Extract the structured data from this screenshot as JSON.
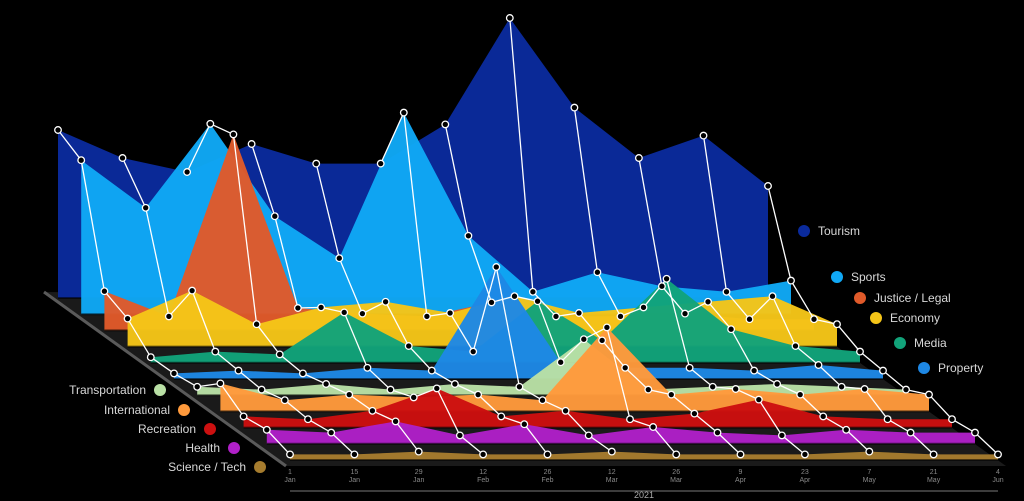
{
  "chart_data": {
    "type": "area",
    "subtype": "3d-stacked-depth-area",
    "title": "",
    "x_group_label": "2021",
    "x_ticks": [
      "1 Jan",
      "15 Jan",
      "29 Jan",
      "12 Feb",
      "26 Feb",
      "12 Mar",
      "26 Mar",
      "9 Apr",
      "23 Apr",
      "7 May",
      "21 May",
      "4 Jun"
    ],
    "x_tick_lines": [
      [
        "1",
        "Jan"
      ],
      [
        "15",
        "Jan"
      ],
      [
        "29",
        "Jan"
      ],
      [
        "12",
        "Feb"
      ],
      [
        "26",
        "Feb"
      ],
      [
        "12",
        "Mar"
      ],
      [
        "26",
        "Mar"
      ],
      [
        "9",
        "Apr"
      ],
      [
        "23",
        "Apr"
      ],
      [
        "7",
        "May"
      ],
      [
        "21",
        "May"
      ],
      [
        "4",
        "Jun"
      ]
    ],
    "grid": false,
    "series": [
      {
        "name": "Tourism",
        "color": "#0a2a9c",
        "values": [
          60,
          50,
          45,
          55,
          48,
          48,
          62,
          100,
          68,
          50,
          58,
          40
        ]
      },
      {
        "name": "Sports",
        "color": "#10a8f5",
        "values": [
          55,
          38,
          68,
          35,
          20,
          72,
          28,
          8,
          15,
          10,
          8,
          12
        ]
      },
      {
        "name": "Justice / Legal",
        "color": "#e05a2a",
        "values": [
          14,
          5,
          70,
          8,
          6,
          5,
          10,
          5,
          5,
          6,
          4,
          4
        ]
      },
      {
        "name": "Economy",
        "color": "#f5c518",
        "values": [
          10,
          20,
          8,
          14,
          16,
          12,
          18,
          12,
          14,
          16,
          18,
          8
        ]
      },
      {
        "name": "Media",
        "color": "#12a37a",
        "values": [
          2,
          4,
          3,
          18,
          6,
          4,
          22,
          8,
          30,
          12,
          6,
          4
        ]
      },
      {
        "name": "Property",
        "color": "#1e88e5",
        "values": [
          2,
          3,
          2,
          4,
          3,
          40,
          6,
          4,
          4,
          3,
          5,
          3
        ]
      },
      {
        "name": "Transportation",
        "color": "#b9e0a5",
        "values": [
          3,
          2,
          4,
          2,
          4,
          3,
          20,
          2,
          3,
          4,
          3,
          2
        ]
      },
      {
        "name": "International",
        "color": "#ff9a3c",
        "values": [
          10,
          4,
          6,
          5,
          6,
          4,
          30,
          6,
          8,
          6,
          8,
          6
        ]
      },
      {
        "name": "Recreation",
        "color": "#cc1010",
        "values": [
          4,
          3,
          6,
          14,
          4,
          6,
          3,
          5,
          10,
          4,
          3,
          3
        ]
      },
      {
        "name": "Health",
        "color": "#b020c8",
        "values": [
          5,
          4,
          8,
          3,
          7,
          3,
          6,
          4,
          3,
          5,
          4,
          4
        ]
      },
      {
        "name": "Science / Tech",
        "color": "#a67c2e",
        "values": [
          2,
          2,
          3,
          2,
          2,
          3,
          2,
          2,
          2,
          3,
          2,
          2
        ]
      }
    ],
    "legend_right": [
      "Tourism",
      "Sports",
      "Justice / Legal",
      "Economy",
      "Media",
      "Property"
    ],
    "legend_left": [
      "Transportation",
      "International",
      "Recreation",
      "Health",
      "Science / Tech"
    ]
  }
}
